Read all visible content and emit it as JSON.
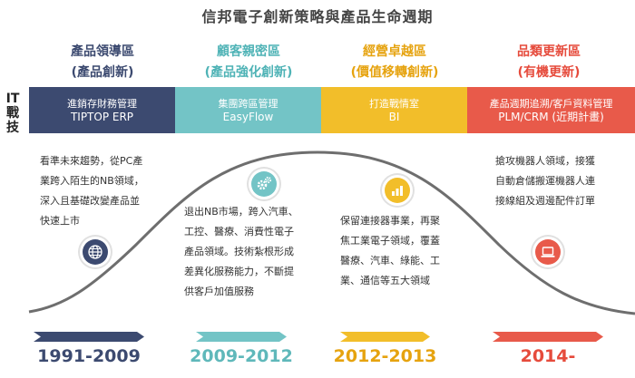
{
  "title": "信邦電子創新策略與產品生命週期",
  "side_label": [
    "IT",
    "戰",
    "技"
  ],
  "stages": [
    {
      "header_line1": "產品領導區",
      "header_line2": "(產品創新)",
      "band_line1": "進銷存財務管理",
      "band_line2": "TIPTOP ERP",
      "desc": [
        "看準未來趨勢，從PC產",
        "業跨入陌生的NB領域，",
        "深入且基礎改變產品並",
        "快速上市"
      ],
      "icon": "globe-icon",
      "year": "1991-2009",
      "color": "#3c4a70"
    },
    {
      "header_line1": "顧客親密區",
      "header_line2": "(產品強化創新)",
      "band_line1": "集團跨區管理",
      "band_line2": "EasyFlow",
      "desc": [
        "退出NB市場，跨入汽車、",
        "工控、醫療、消費性電子",
        "產品領域。技術紮根形成",
        "差異化服務能力，不斷提",
        "供客戶加值服務"
      ],
      "icon": "gears-icon",
      "year": "2009-2012",
      "color": "#73c4c6"
    },
    {
      "header_line1": "經營卓越區",
      "header_line2": "(價值移轉創新)",
      "band_line1": "打造戰情室",
      "band_line2": "BI",
      "desc": [
        "保留連接器事業，再聚",
        "焦工業電子領域，覆蓋",
        "醫療、汽車、綠能、工",
        "業、通信等五大領域"
      ],
      "icon": "bar-chart-icon",
      "year": "2012-2013",
      "color": "#f2be2a"
    },
    {
      "header_line1": "品類更新區",
      "header_line2": "(有機更新)",
      "band_line1": "產品週期追溯/客戶資料管理",
      "band_line2": "PLM/CRM (近期計畫)",
      "desc": [
        "搶攻機器人領域，接獲",
        "自動倉儲搬運機器人連",
        "接線組及週邊配件訂單"
      ],
      "icon": "laptop-icon",
      "year": "2014-",
      "color": "#e85a4a"
    }
  ]
}
